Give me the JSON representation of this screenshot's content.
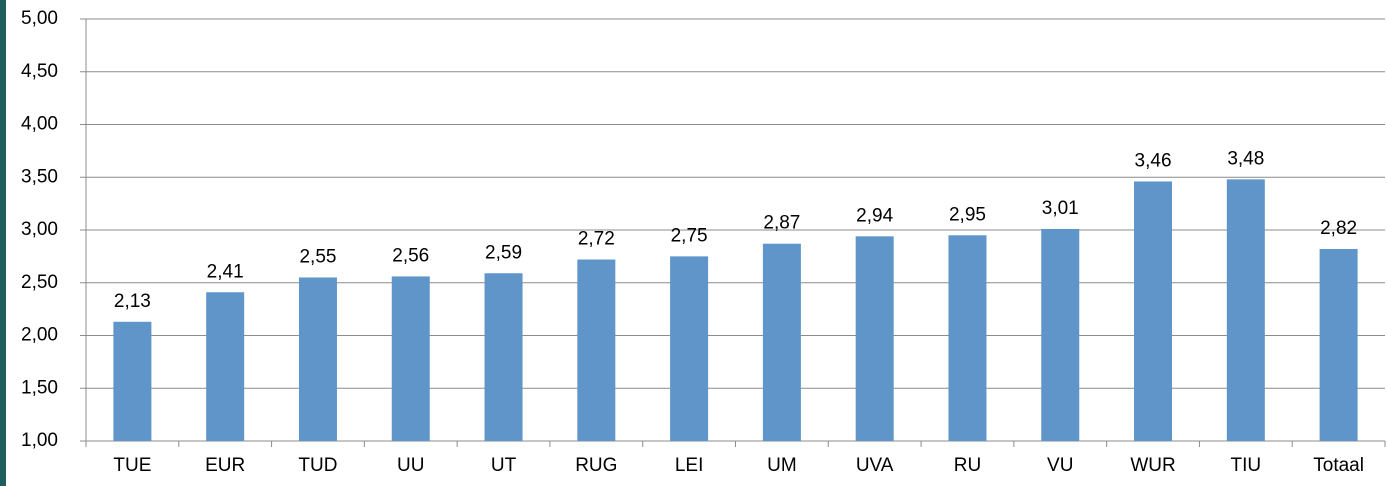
{
  "chart_data": {
    "type": "bar",
    "categories": [
      "TUE",
      "EUR",
      "TUD",
      "UU",
      "UT",
      "RUG",
      "LEI",
      "UM",
      "UVA",
      "RU",
      "VU",
      "WUR",
      "TIU",
      "Totaal"
    ],
    "values": [
      2.13,
      2.41,
      2.55,
      2.56,
      2.59,
      2.72,
      2.75,
      2.87,
      2.94,
      2.95,
      3.01,
      3.46,
      3.48,
      2.82
    ],
    "value_labels": [
      "2,13",
      "2,41",
      "2,55",
      "2,56",
      "2,59",
      "2,72",
      "2,75",
      "2,87",
      "2,94",
      "2,95",
      "3,01",
      "3,46",
      "3,48",
      "2,82"
    ],
    "color": "#5f95c9",
    "ylim": [
      1,
      5
    ],
    "yticks": [
      {
        "value": 1,
        "label": "1,00"
      },
      {
        "value": 1.5,
        "label": "1,50"
      },
      {
        "value": 2,
        "label": "2,00"
      },
      {
        "value": 2.5,
        "label": "2,50"
      },
      {
        "value": 3,
        "label": "3,00"
      },
      {
        "value": 3.5,
        "label": "3,50"
      },
      {
        "value": 4,
        "label": "4,00"
      },
      {
        "value": 4.5,
        "label": "4,50"
      },
      {
        "value": 5,
        "label": "5,00"
      }
    ],
    "grid": true
  }
}
